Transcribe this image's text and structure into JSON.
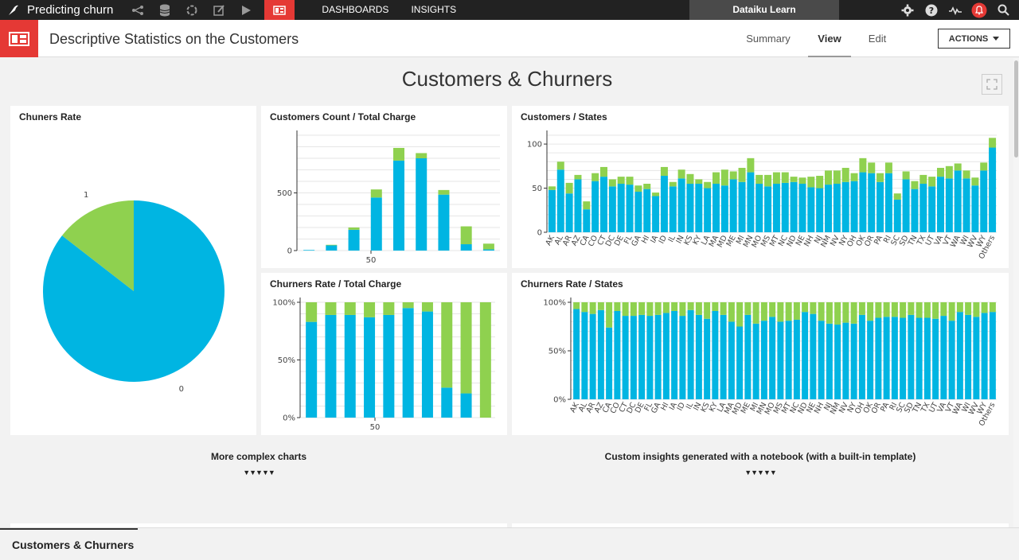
{
  "topnav": {
    "project_name": "Predicting churn",
    "links": [
      "DASHBOARDS",
      "INSIGHTS"
    ],
    "workspace": "Dataiku Learn",
    "icons": [
      "bird-logo-icon",
      "flow-icon",
      "datasets-icon",
      "recipes-icon",
      "notebooks-icon",
      "jobs-icon",
      "dashboard-icon",
      "gear-icon",
      "help-icon",
      "activity-icon",
      "notifications-icon",
      "search-icon"
    ]
  },
  "header": {
    "title": "Descriptive Statistics on the Customers",
    "tabs": [
      "Summary",
      "View",
      "Edit"
    ],
    "active_tab": "View",
    "actions_label": "ACTIONS"
  },
  "dashboard": {
    "title": "Customers & Churners",
    "sections": [
      "More complex charts",
      "Custom insights generated with a notebook (with a built-in template)"
    ],
    "section_arrows": "▼▼▼▼▼",
    "page_tab": "Customers & Churners"
  },
  "colors": {
    "blue": "#00b5e2",
    "green": "#8fd14f",
    "accent": "#e53935"
  },
  "chart_data": [
    {
      "type": "pie",
      "title": "Chuners Rate",
      "labels": [
        "0",
        "1"
      ],
      "values": [
        0.855,
        0.145
      ]
    },
    {
      "type": "bar",
      "title": "Customers Count / Total Charge",
      "stacked": true,
      "x_ticks": [
        "50"
      ],
      "y_ticks": [
        "0",
        "500"
      ],
      "ylim": [
        0,
        1000
      ],
      "series": [
        {
          "values": [
            5,
            45,
            180,
            460,
            780,
            800,
            485,
            55,
            10
          ]
        },
        {
          "values": [
            0,
            5,
            20,
            70,
            110,
            45,
            40,
            155,
            50
          ]
        }
      ]
    },
    {
      "type": "bar",
      "title": "Customers / States",
      "stacked": true,
      "y_ticks": [
        "0",
        "50",
        "100"
      ],
      "ylim": [
        0,
        110
      ],
      "categories": [
        "AK",
        "AL",
        "AR",
        "AZ",
        "CA",
        "CO",
        "CT",
        "DC",
        "DE",
        "FL",
        "GA",
        "HI",
        "IA",
        "ID",
        "IL",
        "IN",
        "KS",
        "KY",
        "LA",
        "MA",
        "MD",
        "ME",
        "MI",
        "MN",
        "MO",
        "MS",
        "MT",
        "NC",
        "ND",
        "NE",
        "NH",
        "NJ",
        "NM",
        "NV",
        "NY",
        "OH",
        "OK",
        "OR",
        "PA",
        "RI",
        "SC",
        "SD",
        "TN",
        "TX",
        "UT",
        "VA",
        "VT",
        "WA",
        "WI",
        "WV",
        "WY",
        "Others"
      ],
      "series": [
        {
          "values": [
            48,
            71,
            44,
            60,
            26,
            58,
            63,
            52,
            55,
            54,
            46,
            49,
            41,
            64,
            52,
            61,
            55,
            55,
            50,
            55,
            53,
            60,
            57,
            68,
            55,
            52,
            55,
            56,
            57,
            55,
            51,
            50,
            54,
            55,
            57,
            58,
            68,
            67,
            57,
            67,
            37,
            60,
            49,
            55,
            52,
            63,
            61,
            70,
            61,
            53,
            70,
            96
          ]
        },
        {
          "values": [
            4,
            9,
            12,
            5,
            9,
            9,
            11,
            8,
            8,
            9,
            7,
            6,
            4,
            10,
            5,
            10,
            11,
            5,
            7,
            13,
            18,
            9,
            16,
            16,
            10,
            13,
            13,
            12,
            6,
            7,
            12,
            14,
            16,
            15,
            16,
            9,
            16,
            12,
            10,
            12,
            7,
            9,
            9,
            10,
            11,
            10,
            14,
            8,
            9,
            9,
            9,
            11
          ]
        }
      ]
    },
    {
      "type": "bar",
      "title": "Churners Rate / Total Charge",
      "stacked": true,
      "x_ticks": [
        "50"
      ],
      "y_ticks": [
        "0%",
        "50%",
        "100%"
      ],
      "ylim": [
        0,
        1
      ],
      "series": [
        {
          "values": [
            0.83,
            0.89,
            0.89,
            0.87,
            0.89,
            0.95,
            0.92,
            0.26,
            0.21,
            0.0
          ]
        },
        {
          "values": [
            0.17,
            0.11,
            0.11,
            0.13,
            0.11,
            0.05,
            0.08,
            0.74,
            0.79,
            1.0
          ]
        }
      ]
    },
    {
      "type": "bar",
      "title": "Churners Rate / States",
      "stacked": true,
      "y_ticks": [
        "0%",
        "50%",
        "100%"
      ],
      "ylim": [
        0,
        1
      ],
      "categories": [
        "AK",
        "AL",
        "AR",
        "AZ",
        "CA",
        "CO",
        "CT",
        "DC",
        "DE",
        "FL",
        "GA",
        "HI",
        "IA",
        "ID",
        "IL",
        "IN",
        "KS",
        "KY",
        "LA",
        "MA",
        "MD",
        "ME",
        "MI",
        "MN",
        "MO",
        "MS",
        "MT",
        "NC",
        "ND",
        "NE",
        "NH",
        "NJ",
        "NM",
        "NV",
        "NY",
        "OH",
        "OK",
        "OR",
        "PA",
        "RI",
        "SC",
        "SD",
        "TN",
        "TX",
        "UT",
        "VA",
        "VT",
        "WA",
        "WI",
        "WV",
        "WY",
        "Others"
      ],
      "series": [
        {
          "values": [
            0.93,
            0.9,
            0.88,
            0.92,
            0.74,
            0.91,
            0.86,
            0.86,
            0.87,
            0.86,
            0.87,
            0.89,
            0.91,
            0.86,
            0.92,
            0.87,
            0.83,
            0.91,
            0.87,
            0.8,
            0.75,
            0.87,
            0.78,
            0.81,
            0.85,
            0.8,
            0.81,
            0.82,
            0.9,
            0.88,
            0.81,
            0.78,
            0.77,
            0.79,
            0.78,
            0.87,
            0.81,
            0.84,
            0.85,
            0.85,
            0.84,
            0.87,
            0.84,
            0.84,
            0.83,
            0.86,
            0.81,
            0.9,
            0.87,
            0.85,
            0.89,
            0.9
          ]
        },
        {
          "values": [
            0.07,
            0.1,
            0.12,
            0.08,
            0.26,
            0.09,
            0.14,
            0.14,
            0.13,
            0.14,
            0.13,
            0.11,
            0.09,
            0.14,
            0.08,
            0.13,
            0.17,
            0.09,
            0.13,
            0.2,
            0.25,
            0.13,
            0.22,
            0.19,
            0.15,
            0.2,
            0.19,
            0.18,
            0.1,
            0.12,
            0.19,
            0.22,
            0.23,
            0.21,
            0.22,
            0.13,
            0.19,
            0.16,
            0.15,
            0.15,
            0.16,
            0.13,
            0.16,
            0.16,
            0.17,
            0.14,
            0.19,
            0.1,
            0.13,
            0.15,
            0.11,
            0.1
          ]
        }
      ]
    }
  ]
}
